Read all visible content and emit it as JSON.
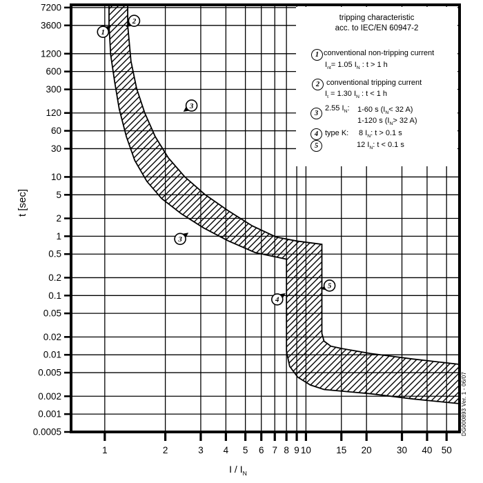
{
  "legend": {
    "title_line1": "tripping characteristic",
    "title_line2": "acc. to IEC/EN 60947-2",
    "item1": {
      "num": "1",
      "text": "conventional non-tripping current",
      "formula": "I_{nt}= 1.05 I_{N} : t > 1 h"
    },
    "item2": {
      "num": "2",
      "text": "conventional tripping current",
      "formula": "I_{t} = 1.30 I_{N} : t < 1 h"
    },
    "item3": {
      "num": "3",
      "label": "2.55 I_{N}:",
      "line1": "1-60 s (I_{N}< 32 A)",
      "line2": "1-120 s (I_{N}> 32 A)"
    },
    "item4": {
      "num": "4",
      "label": "type K:",
      "line1": "8 I_{N}: t > 0.1 s"
    },
    "item5": {
      "num": "5",
      "line1": "12 I_{N}: t < 0.1 s"
    }
  },
  "axes": {
    "y_label": "t [sec]",
    "x_label": "I / I_{N}"
  },
  "footer": {
    "doc_ref": "DG000893 Ver. 1 - 06/07"
  },
  "chart_data": {
    "type": "area",
    "title": "tripping characteristic acc. to IEC/EN 60947-2",
    "xlabel": "I/IN",
    "ylabel": "t [sec]",
    "x_scale": "log",
    "y_scale": "log",
    "grid": true,
    "xlim": [
      0.68,
      58
    ],
    "ylim": [
      0.0005,
      8000
    ],
    "x_ticks": [
      "1",
      "2",
      "3",
      "4",
      "5",
      "6",
      "7",
      "8",
      "9",
      "10",
      "15",
      "20",
      "30",
      "40",
      "50"
    ],
    "y_ticks": [
      "7200",
      "3600",
      "1200",
      "600",
      "300",
      "120",
      "60",
      "30",
      "10",
      "5",
      "2",
      "1",
      "0.5",
      "0.2",
      "0.1",
      "0.05",
      "0.02",
      "0.01",
      "0.005",
      "0.002",
      "0.001",
      "0.0005"
    ],
    "band": {
      "description": "tripping characteristic tolerance band (hatched)",
      "lower_edge": [
        [
          1.05,
          8000
        ],
        [
          1.05,
          3600
        ],
        [
          1.07,
          1150
        ],
        [
          1.12,
          400
        ],
        [
          1.18,
          140
        ],
        [
          1.28,
          48
        ],
        [
          1.41,
          19
        ],
        [
          1.62,
          8.4
        ],
        [
          1.92,
          4.3
        ],
        [
          2.4,
          2.4
        ],
        [
          3.1,
          1.38
        ],
        [
          4.1,
          0.84
        ],
        [
          5.6,
          0.53
        ],
        [
          8,
          0.41
        ],
        [
          8,
          0.0114
        ],
        [
          8.3,
          0.0064
        ],
        [
          9.1,
          0.0042
        ],
        [
          10.5,
          0.0031
        ],
        [
          12.3,
          0.0026
        ],
        [
          21,
          0.0022
        ],
        [
          34,
          0.0018
        ],
        [
          58,
          0.0015
        ]
      ],
      "upper_edge": [
        [
          1.3,
          8000
        ],
        [
          1.3,
          3600
        ],
        [
          1.35,
          900
        ],
        [
          1.44,
          310
        ],
        [
          1.58,
          120
        ],
        [
          1.78,
          48
        ],
        [
          2.07,
          21
        ],
        [
          2.5,
          10
        ],
        [
          3.16,
          5
        ],
        [
          4.1,
          2.7
        ],
        [
          5.4,
          1.5
        ],
        [
          7.1,
          0.97
        ],
        [
          9.0,
          0.83
        ],
        [
          12,
          0.73
        ],
        [
          12,
          0.023
        ],
        [
          12.3,
          0.017
        ],
        [
          13.3,
          0.014
        ],
        [
          15,
          0.0128
        ],
        [
          21,
          0.0105
        ],
        [
          34,
          0.0085
        ],
        [
          58,
          0.0069
        ]
      ]
    },
    "markers": [
      {
        "label": "1",
        "x": 0.98,
        "t": 2800,
        "pointer": "ne"
      },
      {
        "label": "2",
        "x": 1.4,
        "t": 4300,
        "pointer": "sw"
      },
      {
        "label": "3",
        "x": 2.7,
        "t": 160,
        "pointer": "sw"
      },
      {
        "label": "3",
        "x": 2.37,
        "t": 0.9,
        "pointer": "ne"
      },
      {
        "label": "4",
        "x": 7.2,
        "t": 0.086,
        "pointer": "ne"
      },
      {
        "label": "5",
        "x": 13.1,
        "t": 0.147,
        "pointer": "w"
      }
    ],
    "colors": {
      "ink": "#000000",
      "background": "#ffffff"
    }
  }
}
